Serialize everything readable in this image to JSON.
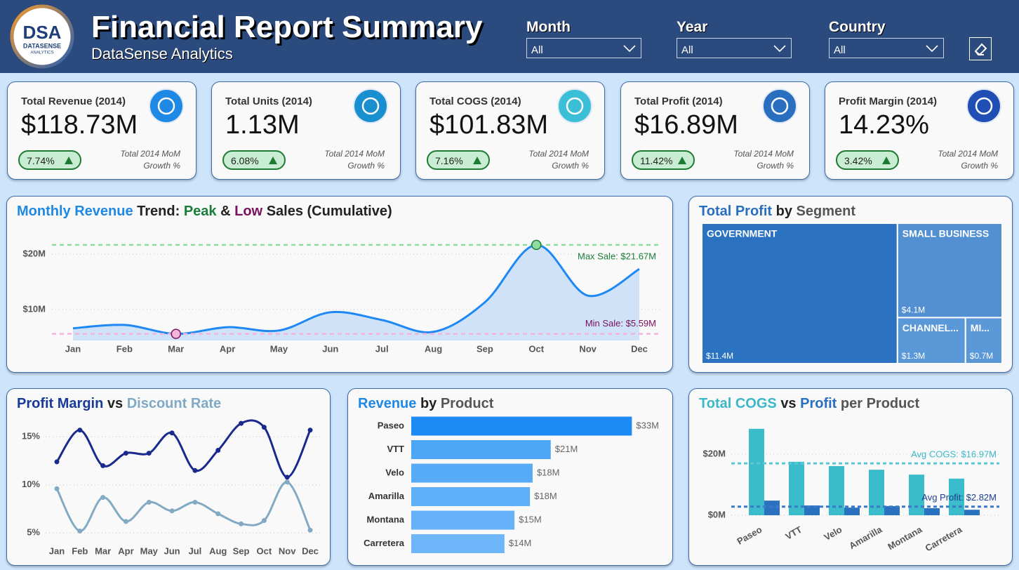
{
  "header": {
    "logo": {
      "mark": "DSA",
      "line1": "DATASENSE",
      "line2": "ANALYTICS"
    },
    "title": "Financial Report Summary",
    "subtitle": "DataSense Analytics"
  },
  "filters": [
    {
      "label": "Month",
      "value": "All"
    },
    {
      "label": "Year",
      "value": "All"
    },
    {
      "label": "Country",
      "value": "All"
    }
  ],
  "kpis": [
    {
      "title": "Total Revenue (2014)",
      "value": "$118.73M",
      "growth": "7.74%",
      "note": "Total 2014 MoM Growth %",
      "icon_color": "#1e88e5"
    },
    {
      "title": "Total Units (2014)",
      "value": "1.13M",
      "growth": "6.08%",
      "note": "Total 2014 MoM Growth %",
      "icon_color": "#1a8fd0"
    },
    {
      "title": "Total COGS (2014)",
      "value": "$101.83M",
      "growth": "7.16%",
      "note": "Total 2014 MoM Growth %",
      "icon_color": "#3bbfd6"
    },
    {
      "title": "Total Profit (2014)",
      "value": "$16.89M",
      "growth": "11.42%",
      "note": "Total 2014 MoM Growth %",
      "icon_color": "#2a6fbf"
    },
    {
      "title": "Profit Margin (2014)",
      "value": "14.23%",
      "growth": "3.42%",
      "note": "Total 2014 MoM Growth %",
      "icon_color": "#1f4fb5"
    }
  ],
  "chart_data": [
    {
      "type": "line",
      "title_parts": [
        {
          "text": "Monthly Revenue",
          "color": "#1e88e5"
        },
        {
          "text": "Trend:",
          "color": "#222222"
        },
        {
          "text": "Peak",
          "color": "#1b7d3a"
        },
        {
          "text": "&",
          "color": "#222222"
        },
        {
          "text": "Low",
          "color": "#7a1060"
        },
        {
          "text": "Sales (Cumulative)",
          "color": "#222222"
        }
      ],
      "categories": [
        "Jan",
        "Feb",
        "Mar",
        "Apr",
        "May",
        "Jun",
        "Jul",
        "Aug",
        "Sep",
        "Oct",
        "Nov",
        "Dec"
      ],
      "values": [
        6.6,
        7.2,
        5.59,
        6.8,
        6.2,
        9.5,
        8.1,
        5.95,
        11.3,
        21.67,
        12.5,
        17.3
      ],
      "color": "#1e88f5",
      "ylim": [
        4.4,
        22.8
      ],
      "yticks": [
        {
          "value": 10,
          "label": "$10M"
        },
        {
          "value": 20,
          "label": "$20M"
        }
      ],
      "grid": true,
      "reference_lines": [
        {
          "value": 21.67,
          "label": "Max Sale: $21.67M",
          "color": "#1b7d3a",
          "line_color": "#8fdc9f"
        },
        {
          "value": 5.59,
          "label": "Min Sale: $5.59M",
          "color": "#7a1060",
          "line_color": "#f4b3d9"
        }
      ]
    },
    {
      "type": "treemap",
      "title_parts": [
        {
          "text": "Total Profit",
          "color": "#2a6fbf"
        },
        {
          "text": "by",
          "color": "#222222"
        },
        {
          "text": "Segment",
          "color": "#555555"
        }
      ],
      "categories": [
        "GOVERNMENT",
        "SMALL BUSINESS",
        "CHANNEL...",
        "MI..."
      ],
      "values": [
        11.4,
        4.1,
        1.3,
        0.7
      ],
      "value_labels": [
        "$11.4M",
        "$4.1M",
        "$1.3M",
        "$0.7M"
      ],
      "colors": [
        "#2b72c0",
        "#5290d2",
        "#5a98d8",
        "#5a98d8"
      ]
    },
    {
      "type": "line",
      "title_parts": [
        {
          "text": "Profit Margin",
          "color": "#1a3a9a"
        },
        {
          "text": "vs",
          "color": "#222222"
        },
        {
          "text": "Discount Rate",
          "color": "#7fa9c4"
        }
      ],
      "categories": [
        "Jan",
        "Feb",
        "Mar",
        "Apr",
        "May",
        "Jun",
        "Jul",
        "Aug",
        "Sep",
        "Oct",
        "Nov",
        "Dec"
      ],
      "series": [
        {
          "color": "#1a2a8c",
          "values": [
            12.4,
            15.7,
            12.0,
            13.3,
            13.3,
            15.4,
            11.5,
            13.6,
            16.4,
            16.0,
            10.8,
            15.7
          ]
        },
        {
          "color": "#82aac2",
          "values": [
            9.6,
            5.2,
            8.7,
            6.2,
            8.2,
            7.3,
            8.2,
            7.0,
            5.95,
            6.3,
            10.3,
            5.3
          ]
        }
      ],
      "ylim": [
        4,
        16.7
      ],
      "yticks": [
        {
          "value": 5,
          "label": "5%"
        },
        {
          "value": 10,
          "label": "10%"
        },
        {
          "value": 15,
          "label": "15%"
        }
      ],
      "grid": true
    },
    {
      "type": "bar",
      "orientation": "horizontal",
      "title_parts": [
        {
          "text": "Revenue",
          "color": "#1e88e5"
        },
        {
          "text": "by",
          "color": "#222222"
        },
        {
          "text": "Product",
          "color": "#555555"
        }
      ],
      "categories": [
        "Paseo",
        "VTT",
        "Velo",
        "Amarilla",
        "Montana",
        "Carretera"
      ],
      "values": [
        32.9,
        20.8,
        18.1,
        17.7,
        15.4,
        13.9
      ],
      "value_labels": [
        "$33M",
        "$21M",
        "$18M",
        "$18M",
        "$15M",
        "$14M"
      ],
      "colors": [
        "#1e8af5",
        "#4ea6f7",
        "#58abf7",
        "#5eaef8",
        "#66b2f8",
        "#6cb6f9"
      ],
      "xlim": [
        0,
        36
      ]
    },
    {
      "type": "bar",
      "title_parts": [
        {
          "text": "Total COGS",
          "color": "#3bb7c8"
        },
        {
          "text": "vs",
          "color": "#222222"
        },
        {
          "text": "Profit",
          "color": "#2a6fbf"
        },
        {
          "text": "per Product",
          "color": "#555555"
        }
      ],
      "categories": [
        "Paseo",
        "VTT",
        "Velo",
        "Amarilla",
        "Montana",
        "Carretera"
      ],
      "series": [
        {
          "color": "#3bbcca",
          "values": [
            28.3,
            17.5,
            16.1,
            14.9,
            13.3,
            12.0
          ]
        },
        {
          "color": "#2a72c0",
          "values": [
            4.8,
            3.2,
            2.5,
            3.0,
            2.3,
            1.8
          ]
        }
      ],
      "ylim": [
        0,
        30.5
      ],
      "yticks": [
        {
          "value": 0,
          "label": "$0M"
        },
        {
          "value": 20,
          "label": "$20M"
        }
      ],
      "grid": true,
      "reference_lines": [
        {
          "value": 16.97,
          "label": "Avg COGS: $16.97M",
          "color": "#3bb7c8",
          "line_color": "#5cc6d4"
        },
        {
          "value": 2.82,
          "label": "Avg Profit: $2.82M",
          "color": "#1a3f8f",
          "line_color": "#3a7ac8"
        }
      ]
    }
  ]
}
